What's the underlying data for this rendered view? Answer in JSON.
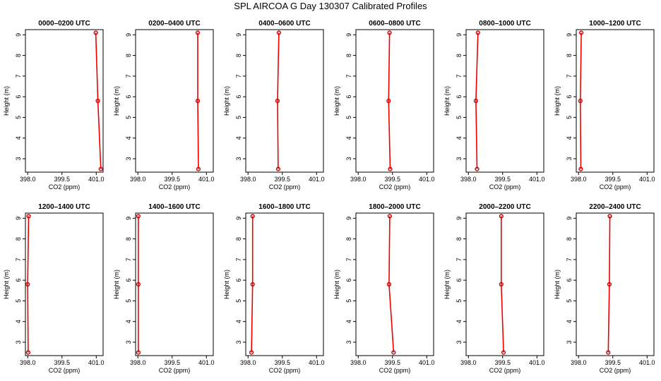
{
  "page": {
    "title": "SPL AIRCOA G  Day 130307  Calibrated Profiles"
  },
  "colors": {
    "line": "#ee0000",
    "marker": "#cc0000",
    "axis": "#000000",
    "background": "#ffffff"
  },
  "chart_data": [
    {
      "type": "line",
      "title": "0000–0200 UTC",
      "xlabel": "CO2 (ppm)",
      "ylabel": "Height (m)",
      "xlim": [
        397.9,
        401.3
      ],
      "ylim": [
        2.35,
        9.25
      ],
      "xticks": [
        398.0,
        399.5,
        401.0
      ],
      "xtick_labels": [
        "398.0",
        "399.5",
        "401.0"
      ],
      "yticks": [
        3,
        4,
        5,
        6,
        7,
        8,
        9
      ],
      "ytick_labels": [
        "3",
        "4",
        "5",
        "6",
        "7",
        "8",
        "9"
      ],
      "marker": "circle",
      "grid": false,
      "legend": "none",
      "x": [
        401.2,
        401.07,
        400.98
      ],
      "y": [
        2.5,
        5.8,
        9.1
      ]
    },
    {
      "type": "line",
      "title": "0200–0400 UTC",
      "xlabel": "CO2 (ppm)",
      "ylabel": "Height (m)",
      "xlim": [
        397.9,
        401.3
      ],
      "ylim": [
        2.35,
        9.25
      ],
      "xticks": [
        398.0,
        399.5,
        401.0
      ],
      "xtick_labels": [
        "398.0",
        "399.5",
        "401.0"
      ],
      "yticks": [
        3,
        4,
        5,
        6,
        7,
        8,
        9
      ],
      "ytick_labels": [
        "3",
        "4",
        "5",
        "6",
        "7",
        "8",
        "9"
      ],
      "marker": "circle",
      "grid": false,
      "legend": "none",
      "x": [
        400.65,
        400.62,
        400.62
      ],
      "y": [
        2.5,
        5.8,
        9.1
      ]
    },
    {
      "type": "line",
      "title": "0400–0600 UTC",
      "xlabel": "CO2 (ppm)",
      "ylabel": "Height (m)",
      "xlim": [
        397.9,
        401.3
      ],
      "ylim": [
        2.35,
        9.25
      ],
      "xticks": [
        398.0,
        399.5,
        401.0
      ],
      "xtick_labels": [
        "398.0",
        "399.5",
        "401.0"
      ],
      "yticks": [
        3,
        4,
        5,
        6,
        7,
        8,
        9
      ],
      "ytick_labels": [
        "3",
        "4",
        "5",
        "6",
        "7",
        "8",
        "9"
      ],
      "marker": "circle",
      "grid": false,
      "legend": "none",
      "x": [
        399.32,
        399.29,
        399.35
      ],
      "y": [
        2.5,
        5.8,
        9.1
      ]
    },
    {
      "type": "line",
      "title": "0600–0800 UTC",
      "xlabel": "CO2 (ppm)",
      "ylabel": "Height (m)",
      "xlim": [
        397.9,
        401.3
      ],
      "ylim": [
        2.35,
        9.25
      ],
      "xticks": [
        398.0,
        399.5,
        401.0
      ],
      "xtick_labels": [
        "398.0",
        "399.5",
        "401.0"
      ],
      "yticks": [
        3,
        4,
        5,
        6,
        7,
        8,
        9
      ],
      "ytick_labels": [
        "3",
        "4",
        "5",
        "6",
        "7",
        "8",
        "9"
      ],
      "marker": "circle",
      "grid": false,
      "legend": "none",
      "x": [
        399.4,
        399.33,
        399.37
      ],
      "y": [
        2.5,
        5.8,
        9.1
      ]
    },
    {
      "type": "line",
      "title": "0800–1000 UTC",
      "xlabel": "CO2 (ppm)",
      "ylabel": "Height (m)",
      "xlim": [
        397.9,
        401.3
      ],
      "ylim": [
        2.35,
        9.25
      ],
      "xticks": [
        398.0,
        399.5,
        401.0
      ],
      "xtick_labels": [
        "398.0",
        "399.5",
        "401.0"
      ],
      "yticks": [
        3,
        4,
        5,
        6,
        7,
        8,
        9
      ],
      "ytick_labels": [
        "3",
        "4",
        "5",
        "6",
        "7",
        "8",
        "9"
      ],
      "marker": "circle",
      "grid": false,
      "legend": "none",
      "x": [
        398.38,
        398.33,
        398.42
      ],
      "y": [
        2.5,
        5.8,
        9.1
      ]
    },
    {
      "type": "line",
      "title": "1000–1200 UTC",
      "xlabel": "CO2 (ppm)",
      "ylabel": "Height (m)",
      "xlim": [
        397.9,
        401.3
      ],
      "ylim": [
        2.35,
        9.25
      ],
      "xticks": [
        398.0,
        399.5,
        401.0
      ],
      "xtick_labels": [
        "398.0",
        "399.5",
        "401.0"
      ],
      "yticks": [
        3,
        4,
        5,
        6,
        7,
        8,
        9
      ],
      "ytick_labels": [
        "3",
        "4",
        "5",
        "6",
        "7",
        "8",
        "9"
      ],
      "marker": "circle",
      "grid": false,
      "legend": "none",
      "x": [
        398.1,
        398.08,
        398.12
      ],
      "y": [
        2.5,
        5.8,
        9.1
      ]
    },
    {
      "type": "line",
      "title": "1200–1400 UTC",
      "xlabel": "CO2 (ppm)",
      "ylabel": "Height (m)",
      "xlim": [
        397.9,
        401.3
      ],
      "ylim": [
        2.35,
        9.25
      ],
      "xticks": [
        398.0,
        399.5,
        401.0
      ],
      "xtick_labels": [
        "398.0",
        "399.5",
        "401.0"
      ],
      "yticks": [
        3,
        4,
        5,
        6,
        7,
        8,
        9
      ],
      "ytick_labels": [
        "3",
        "4",
        "5",
        "6",
        "7",
        "8",
        "9"
      ],
      "marker": "circle",
      "grid": false,
      "legend": "none",
      "x": [
        398.02,
        398.0,
        398.04
      ],
      "y": [
        2.5,
        5.8,
        9.1
      ]
    },
    {
      "type": "line",
      "title": "1400–1600 UTC",
      "xlabel": "CO2 (ppm)",
      "ylabel": "Height (m)",
      "xlim": [
        397.9,
        401.3
      ],
      "ylim": [
        2.35,
        9.25
      ],
      "xticks": [
        398.0,
        399.5,
        401.0
      ],
      "xtick_labels": [
        "398.0",
        "399.5",
        "401.0"
      ],
      "yticks": [
        3,
        4,
        5,
        6,
        7,
        8,
        9
      ],
      "ytick_labels": [
        "3",
        "4",
        "5",
        "6",
        "7",
        "8",
        "9"
      ],
      "marker": "circle",
      "grid": false,
      "legend": "none",
      "x": [
        398.02,
        398.02,
        398.02
      ],
      "y": [
        2.5,
        5.8,
        9.1
      ]
    },
    {
      "type": "line",
      "title": "1600–1800 UTC",
      "xlabel": "CO2 (ppm)",
      "ylabel": "Height (m)",
      "xlim": [
        397.9,
        401.3
      ],
      "ylim": [
        2.35,
        9.25
      ],
      "xticks": [
        398.0,
        399.5,
        401.0
      ],
      "xtick_labels": [
        "398.0",
        "399.5",
        "401.0"
      ],
      "yticks": [
        3,
        4,
        5,
        6,
        7,
        8,
        9
      ],
      "ytick_labels": [
        "3",
        "4",
        "5",
        "6",
        "7",
        "8",
        "9"
      ],
      "marker": "circle",
      "grid": false,
      "legend": "none",
      "x": [
        398.15,
        398.2,
        398.2
      ],
      "y": [
        2.5,
        5.8,
        9.1
      ]
    },
    {
      "type": "line",
      "title": "1800–2000 UTC",
      "xlabel": "CO2 (ppm)",
      "ylabel": "Height (m)",
      "xlim": [
        397.9,
        401.3
      ],
      "ylim": [
        2.35,
        9.25
      ],
      "xticks": [
        398.0,
        399.5,
        401.0
      ],
      "xtick_labels": [
        "398.0",
        "399.5",
        "401.0"
      ],
      "yticks": [
        3,
        4,
        5,
        6,
        7,
        8,
        9
      ],
      "ytick_labels": [
        "3",
        "4",
        "5",
        "6",
        "7",
        "8",
        "9"
      ],
      "marker": "circle",
      "grid": false,
      "legend": "none",
      "x": [
        399.55,
        399.35,
        399.38
      ],
      "y": [
        2.5,
        5.8,
        9.1
      ]
    },
    {
      "type": "line",
      "title": "2000–2200 UTC",
      "xlabel": "CO2 (ppm)",
      "ylabel": "Height (m)",
      "xlim": [
        397.9,
        401.3
      ],
      "ylim": [
        2.35,
        9.25
      ],
      "xticks": [
        398.0,
        399.5,
        401.0
      ],
      "xtick_labels": [
        "398.0",
        "399.5",
        "401.0"
      ],
      "yticks": [
        3,
        4,
        5,
        6,
        7,
        8,
        9
      ],
      "ytick_labels": [
        "3",
        "4",
        "5",
        "6",
        "7",
        "8",
        "9"
      ],
      "marker": "circle",
      "grid": false,
      "legend": "none",
      "x": [
        399.54,
        399.44,
        399.44
      ],
      "y": [
        2.5,
        5.8,
        9.1
      ]
    },
    {
      "type": "line",
      "title": "2200–2400 UTC",
      "xlabel": "CO2 (ppm)",
      "ylabel": "Height (m)",
      "xlim": [
        397.9,
        401.3
      ],
      "ylim": [
        2.35,
        9.25
      ],
      "xticks": [
        398.0,
        399.5,
        401.0
      ],
      "xtick_labels": [
        "398.0",
        "399.5",
        "401.0"
      ],
      "yticks": [
        3,
        4,
        5,
        6,
        7,
        8,
        9
      ],
      "ytick_labels": [
        "3",
        "4",
        "5",
        "6",
        "7",
        "8",
        "9"
      ],
      "marker": "circle",
      "grid": false,
      "legend": "none",
      "x": [
        399.3,
        399.35,
        399.37
      ],
      "y": [
        2.5,
        5.8,
        9.1
      ]
    }
  ]
}
